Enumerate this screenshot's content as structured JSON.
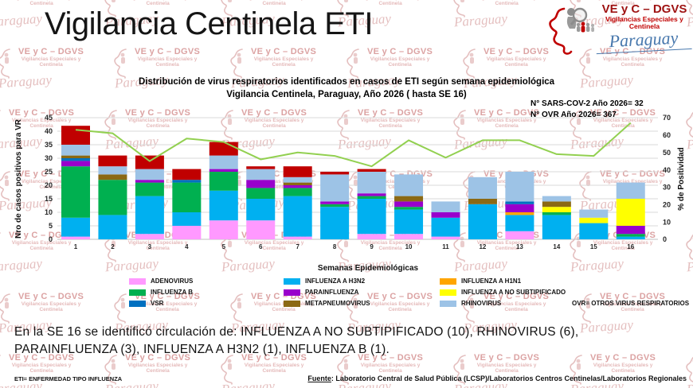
{
  "slide": {
    "main_title": "Vigilancia Centinela ETI",
    "logo": {
      "line1": "VE y C – DGVS",
      "line2": "Vigilancias Especiales y",
      "line3": "Centinela",
      "script": "Paraguay"
    },
    "watermark": {
      "line1": "VE y C – DGVS",
      "line2": "Vigilancias Especiales y",
      "line3": "Centinela",
      "script": "Paraguay"
    },
    "annotation": {
      "line1": "N° SARS-COV-2 Año 2026= 32",
      "line2": "N° OVR Año 2026= 367"
    },
    "ovr_note": "OVR=  OTROS VIRUS RESPIRATORIOS",
    "se16_text": "En la SE 16 se identificó circulación de: INFLUENZA A NO SUBTIPIFICADO (10), RHINOVIRUS (6), PARAINFLUENZA (3), INFLUENZA A H3N2 (1), INFLUENZA B (1).",
    "footer_left": "ETI= ENFERMEDAD TIPO INFLUENZA",
    "footer_right": {
      "label": "Fuente",
      "rest": ": Laboratorio Central de Salud Pública (LCSP)/Laboratorios Centros Centinelas/Laboratorios Regionales"
    }
  },
  "chart_data": {
    "type": "bar",
    "subtype": "stacked-bars-with-percent-line",
    "title_line1": "Distribución de virus respiratorios identificados en casos de ETI según semana epidemiológica",
    "title_line2": "Vigilancia Centinela, Paraguay, Año 2026 ( hasta SE 16)",
    "xlabel": "Semanas Epidemiológicas",
    "ylabel_left": "Nro de casos positivos para VR",
    "ylabel_right": "% de Positividad",
    "ylim_left": [
      0,
      45
    ],
    "ytick_step_left": 5,
    "ylim_right": [
      0,
      70
    ],
    "ytick_step_right": 10,
    "grid": true,
    "legend_position": "bottom",
    "categories": [
      1,
      2,
      3,
      4,
      5,
      6,
      7,
      8,
      9,
      10,
      11,
      12,
      13,
      14,
      15,
      16
    ],
    "series": [
      {
        "name": "ADENOVIRUS",
        "color": "#FF99FF",
        "values": [
          1,
          0,
          2,
          5,
          7,
          7,
          1,
          0,
          2,
          2,
          1,
          0,
          3,
          0,
          0,
          0
        ]
      },
      {
        "name": "INFLUENZA A H3N2",
        "color": "#00B0F0",
        "values": [
          7,
          9,
          14,
          5,
          11,
          8,
          15,
          12,
          13,
          9,
          7,
          13,
          6,
          9,
          6,
          1
        ]
      },
      {
        "name": "INFLUENZA B",
        "color": "#00B050",
        "values": [
          19,
          13,
          5,
          11,
          7,
          4,
          3,
          1,
          1,
          1,
          0,
          0,
          0,
          1,
          0,
          1
        ]
      },
      {
        "name": "INFLUENZA A H1N1",
        "color": "#FFA500",
        "values": [
          0,
          0,
          0,
          0,
          0,
          0,
          0,
          0,
          0,
          0,
          0,
          0,
          1,
          0,
          0,
          0
        ]
      },
      {
        "name": "PARAINFLUENZA",
        "color": "#9900CC",
        "values": [
          2,
          0,
          1,
          0,
          1,
          3,
          1,
          1,
          1,
          2,
          2,
          0,
          3,
          0,
          0,
          3
        ]
      },
      {
        "name": "VSR",
        "color": "#0070C0",
        "values": [
          1,
          0,
          0,
          1,
          0,
          0,
          0,
          0,
          0,
          0,
          0,
          0,
          1,
          0,
          0,
          0
        ]
      },
      {
        "name": "INFLUENZA A NO SUBTIPIFICADO",
        "color": "#FFFF00",
        "values": [
          0,
          0,
          0,
          0,
          0,
          0,
          0,
          0,
          0,
          0,
          0,
          0,
          0,
          2,
          2,
          10
        ]
      },
      {
        "name": "METAPNEUMOVIRUS",
        "color": "#8B6914",
        "values": [
          1,
          2,
          0,
          0,
          0,
          0,
          1,
          0,
          0,
          2,
          0,
          2,
          0,
          2,
          0,
          0
        ]
      },
      {
        "name": "RHINOVIRUS",
        "color": "#9DC3E6",
        "values": [
          4,
          3,
          4,
          0,
          5,
          4,
          2,
          10,
          8,
          8,
          4,
          8,
          11,
          2,
          3,
          6
        ]
      },
      {
        "name": "SARS-COV-2",
        "color": "#C00000",
        "values": [
          7,
          4,
          5,
          4,
          5,
          1,
          4,
          1,
          1,
          0,
          0,
          0,
          0,
          0,
          0,
          0
        ]
      }
    ],
    "line": {
      "name": "% de Positividad",
      "color": "#92D050",
      "values": [
        63,
        61,
        45,
        58,
        56,
        46,
        50,
        48,
        42,
        57,
        47,
        57,
        57,
        49,
        48,
        67
      ]
    },
    "legend_columns": [
      [
        "ADENOVIRUS",
        "INFLUENZA B",
        "VSR"
      ],
      [
        "INFLUENZA A H3N2",
        "PARAINFLUENZA",
        "METAPNEUMOVIRUS"
      ],
      [
        "INFLUENZA A H1N1",
        "INFLUENZA A NO SUBTIPIFICADO",
        "RHINOVIRUS"
      ]
    ],
    "colors": {
      "grid": "#D9D9D9",
      "axis": "#BFBFBF"
    }
  }
}
